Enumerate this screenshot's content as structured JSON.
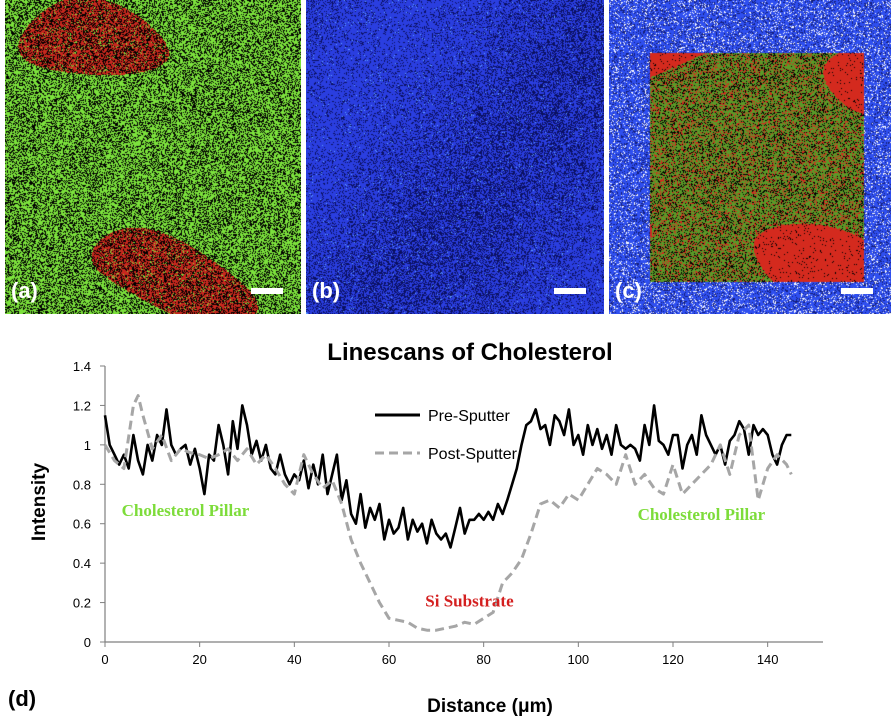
{
  "panels": [
    {
      "label": "(a)",
      "colors": [
        "#7ce23c",
        "#c8281e",
        "#000000"
      ]
    },
    {
      "label": "(b)",
      "colors": [
        "#2a3ee0",
        "#0a1060",
        "#5fa0ff"
      ]
    },
    {
      "label": "(c)",
      "colors": [
        "#2f4ff0",
        "#d42a1e",
        "#5a9a28",
        "#ffffff"
      ]
    }
  ],
  "figure_label": "(d)",
  "chart_data": {
    "type": "line",
    "title": "Linescans of Cholesterol",
    "xlabel": "Distance (μm)",
    "ylabel": "Intensity",
    "xlim": [
      0,
      150
    ],
    "ylim": [
      0,
      1.4
    ],
    "xticks": [
      "0",
      "20",
      "40",
      "60",
      "80",
      "100",
      "120",
      "140"
    ],
    "yticks": [
      "0",
      "0.2",
      "0.4",
      "0.6",
      "0.8",
      "1",
      "1.2",
      "1.4"
    ],
    "grid": false,
    "legend": "top-center",
    "annotations": [
      {
        "text": "Cholesterol Pillar",
        "x": 17,
        "y": 0.64,
        "color": "#7ddc3a"
      },
      {
        "text": "Si Substrate",
        "x": 77,
        "y": 0.18,
        "color": "#d42020"
      },
      {
        "text": "Cholesterol Pillar",
        "x": 126,
        "y": 0.62,
        "color": "#7ddc3a"
      }
    ],
    "series": [
      {
        "name": "Pre-Sputter",
        "color": "#000000",
        "style": "solid",
        "x": [
          0,
          1,
          2,
          3,
          4,
          5,
          6,
          7,
          8,
          9,
          10,
          11,
          12,
          13,
          14,
          15,
          16,
          17,
          18,
          19,
          20,
          21,
          22,
          23,
          24,
          25,
          26,
          27,
          28,
          29,
          30,
          31,
          32,
          33,
          34,
          35,
          36,
          37,
          38,
          39,
          40,
          41,
          42,
          43,
          44,
          45,
          46,
          47,
          48,
          49,
          50,
          51,
          52,
          53,
          54,
          55,
          56,
          57,
          58,
          59,
          60,
          61,
          62,
          63,
          64,
          65,
          66,
          67,
          68,
          69,
          70,
          71,
          72,
          73,
          74,
          75,
          76,
          77,
          78,
          79,
          80,
          81,
          82,
          83,
          84,
          85,
          86,
          87,
          88,
          89,
          90,
          91,
          92,
          93,
          94,
          95,
          96,
          97,
          98,
          99,
          100,
          101,
          102,
          103,
          104,
          105,
          106,
          107,
          108,
          109,
          110,
          111,
          112,
          113,
          114,
          115,
          116,
          117,
          118,
          119,
          120,
          121,
          122,
          123,
          124,
          125,
          126,
          127,
          128,
          129,
          130,
          131,
          132,
          133,
          134,
          135,
          136,
          137,
          138,
          139,
          140,
          141,
          142,
          143,
          144,
          145
        ],
        "values": [
          1.15,
          1.0,
          0.95,
          0.9,
          0.95,
          0.88,
          1.05,
          0.92,
          0.85,
          1.0,
          0.92,
          1.05,
          1.0,
          1.18,
          1.0,
          0.95,
          0.98,
          1.0,
          0.9,
          0.98,
          0.88,
          0.75,
          0.95,
          0.92,
          1.1,
          1.0,
          0.85,
          1.12,
          0.98,
          1.2,
          1.1,
          0.95,
          1.02,
          0.92,
          1.0,
          0.88,
          0.85,
          0.95,
          0.85,
          0.8,
          0.85,
          0.82,
          0.92,
          0.78,
          0.9,
          0.8,
          0.95,
          0.75,
          0.85,
          0.95,
          0.72,
          0.82,
          0.65,
          0.6,
          0.75,
          0.58,
          0.68,
          0.62,
          0.7,
          0.52,
          0.62,
          0.55,
          0.58,
          0.68,
          0.52,
          0.62,
          0.56,
          0.6,
          0.5,
          0.62,
          0.55,
          0.52,
          0.55,
          0.48,
          0.58,
          0.68,
          0.55,
          0.62,
          0.62,
          0.65,
          0.62,
          0.66,
          0.62,
          0.7,
          0.65,
          0.72,
          0.8,
          0.88,
          1.0,
          1.1,
          1.12,
          1.18,
          1.08,
          1.1,
          1.0,
          1.15,
          1.12,
          1.05,
          1.18,
          1.0,
          1.05,
          0.95,
          1.1,
          1.0,
          1.08,
          0.98,
          1.05,
          0.95,
          1.1,
          1.0,
          0.98,
          1.0,
          0.98,
          0.92,
          1.1,
          1.0,
          1.2,
          1.02,
          1.0,
          0.95,
          1.05,
          1.05,
          0.88,
          1.0,
          1.05,
          0.95,
          1.15,
          1.05,
          1.0,
          0.95,
          1.0,
          0.9,
          1.02,
          1.05,
          1.12,
          1.08,
          0.95,
          1.1,
          1.05,
          1.08,
          1.05,
          0.95,
          0.9,
          1.0,
          1.05,
          1.05
        ]
      },
      {
        "name": "Post-Sputter",
        "color": "#a6a6a6",
        "style": "dashed",
        "x": [
          0,
          2,
          4,
          6,
          7,
          8,
          10,
          12,
          14,
          16,
          18,
          20,
          22,
          24,
          26,
          28,
          30,
          32,
          34,
          36,
          38,
          40,
          42,
          44,
          46,
          48,
          50,
          52,
          54,
          56,
          58,
          60,
          62,
          64,
          66,
          68,
          70,
          72,
          74,
          76,
          78,
          80,
          82,
          84,
          86,
          88,
          90,
          92,
          94,
          96,
          98,
          100,
          102,
          104,
          106,
          108,
          110,
          112,
          114,
          116,
          118,
          120,
          122,
          124,
          126,
          128,
          130,
          132,
          134,
          136,
          138,
          140,
          142,
          144,
          145
        ],
        "values": [
          1.0,
          0.92,
          0.88,
          1.2,
          1.25,
          1.15,
          0.98,
          1.05,
          0.92,
          0.98,
          0.96,
          0.95,
          0.93,
          0.95,
          0.98,
          0.92,
          0.98,
          0.9,
          0.95,
          0.88,
          0.8,
          0.75,
          0.95,
          0.85,
          0.78,
          0.82,
          0.7,
          0.52,
          0.4,
          0.3,
          0.2,
          0.12,
          0.11,
          0.1,
          0.07,
          0.06,
          0.06,
          0.07,
          0.08,
          0.1,
          0.09,
          0.12,
          0.15,
          0.3,
          0.35,
          0.42,
          0.55,
          0.7,
          0.72,
          0.68,
          0.75,
          0.72,
          0.8,
          0.88,
          0.85,
          0.8,
          0.95,
          0.8,
          0.85,
          0.78,
          0.75,
          0.9,
          0.75,
          0.8,
          0.85,
          0.9,
          1.0,
          0.85,
          1.05,
          1.1,
          0.72,
          0.88,
          0.95,
          0.9,
          0.85
        ]
      }
    ]
  }
}
